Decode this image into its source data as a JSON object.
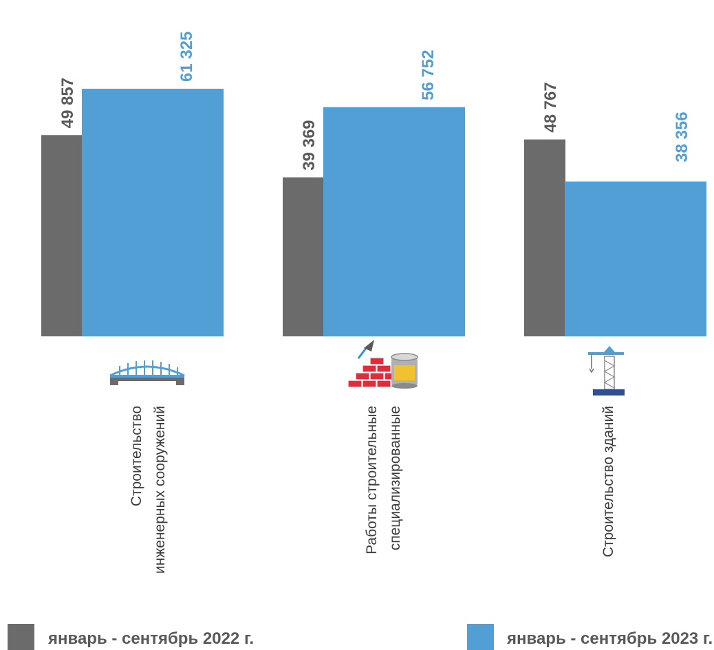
{
  "chart_data": {
    "type": "bar",
    "categories": [
      [
        "Строительство",
        "инженерных сооружений"
      ],
      [
        "Работы строительные",
        "специализированные"
      ],
      [
        "Строительство зданий"
      ]
    ],
    "category_icons": [
      "bridge-icon",
      "brick-wall-icon",
      "tower-crane-icon"
    ],
    "series": [
      {
        "name": "январь - сентябрь 2022 г.",
        "values": [
          49857,
          39369,
          48767
        ],
        "labels": [
          "49 857",
          "39 369",
          "48 767"
        ],
        "color": "#6b6b6b"
      },
      {
        "name": "январь - сентябрь 2023 г.",
        "values": [
          61325,
          56752,
          38356
        ],
        "labels": [
          "61 325",
          "56 752",
          "38 356"
        ],
        "color": "#529fd6"
      }
    ],
    "ylim": [
      0,
      61325
    ],
    "grid": false,
    "legend_position": "bottom"
  }
}
